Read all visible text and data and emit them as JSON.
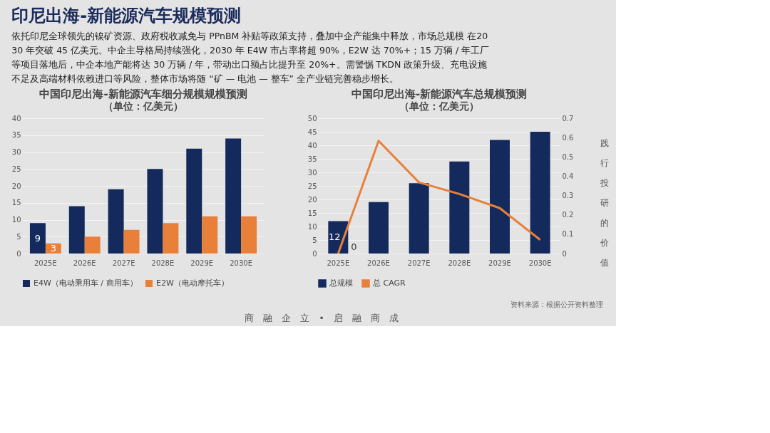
{
  "chart_data": [
    {
      "type": "bar",
      "title": "中国印尼出海-新能源汽车细分规模规模预测",
      "subtitle": "（单位：亿美元）",
      "categories": [
        "2025E",
        "2026E",
        "2027E",
        "2028E",
        "2029E",
        "2030E"
      ],
      "series": [
        {
          "name": "E4W（电动乘用车 / 商用车）",
          "color": "#142a5c",
          "values": [
            9,
            14,
            19,
            25,
            31,
            34
          ],
          "value_labels": [
            "9",
            null,
            null,
            null,
            null,
            null
          ]
        },
        {
          "name": "E2W（电动摩托车）",
          "color": "#e8803a",
          "values": [
            3,
            5,
            7,
            9,
            11,
            11
          ],
          "value_labels": [
            "3",
            null,
            null,
            null,
            null,
            null
          ]
        }
      ],
      "ylim": [
        0,
        40
      ],
      "yticks": [
        0,
        5,
        10,
        15,
        20,
        25,
        30,
        35,
        40
      ],
      "grid": "y",
      "legend": "bottom",
      "annotations": [
        "印尼出海-新能源汽车规模预测",
        "依托印尼全球领先的镍矿资源、政府税收减免与 PPnBM 补贴等政策支持，叠加中企产能集中释放，市场总规模 在2030 年突破 45 亿美元。中企主导格局持续强化，2030 年 E4W 市占率将超 90%，E2W 达 70%+；15 万辆 / 年工厂等项目落地后，中企本地产能将达 30 万辆 / 年，带动出口额占比提升至 20%+。需警惕 TKDN 政策升级、充电设施不足及高端材料依赖进口等风险，整体市场将随 “矿 — 电池 — 整车” 全产业链完善稳步增长。",
        "商　融　企　立　•　启　融　商　成"
      ]
    },
    {
      "type": "bar",
      "title": "中国印尼出海-新能源汽车总规模预测",
      "subtitle": "（单位：亿美元）",
      "categories": [
        "2025E",
        "2026E",
        "2027E",
        "2028E",
        "2029E",
        "2030E"
      ],
      "series": [
        {
          "name": "总规模",
          "type": "bar",
          "color": "#142a5c",
          "values": [
            12,
            19,
            26,
            34,
            42,
            45
          ],
          "value_labels": [
            "12",
            null,
            null,
            null,
            null,
            null
          ]
        },
        {
          "name": "总 CAGR",
          "type": "line",
          "axis": "y2",
          "color": "#e8803a",
          "values": [
            0,
            0.583,
            0.368,
            0.308,
            0.235,
            0.071
          ],
          "value_labels": [
            "0",
            null,
            null,
            null,
            null,
            null
          ]
        }
      ],
      "ylim": [
        0,
        50
      ],
      "yticks": [
        0,
        5,
        10,
        15,
        20,
        25,
        30,
        35,
        40,
        45,
        50
      ],
      "y2lim": [
        0,
        0.7
      ],
      "y2ticks": [
        0,
        0.1,
        0.2,
        0.3,
        0.4,
        0.5,
        0.6,
        0.7
      ],
      "grid": "y",
      "legend": "bottom",
      "annotations": [
        "资料来源：根据公开资料整理",
        "践行投研的价值"
      ]
    }
  ]
}
